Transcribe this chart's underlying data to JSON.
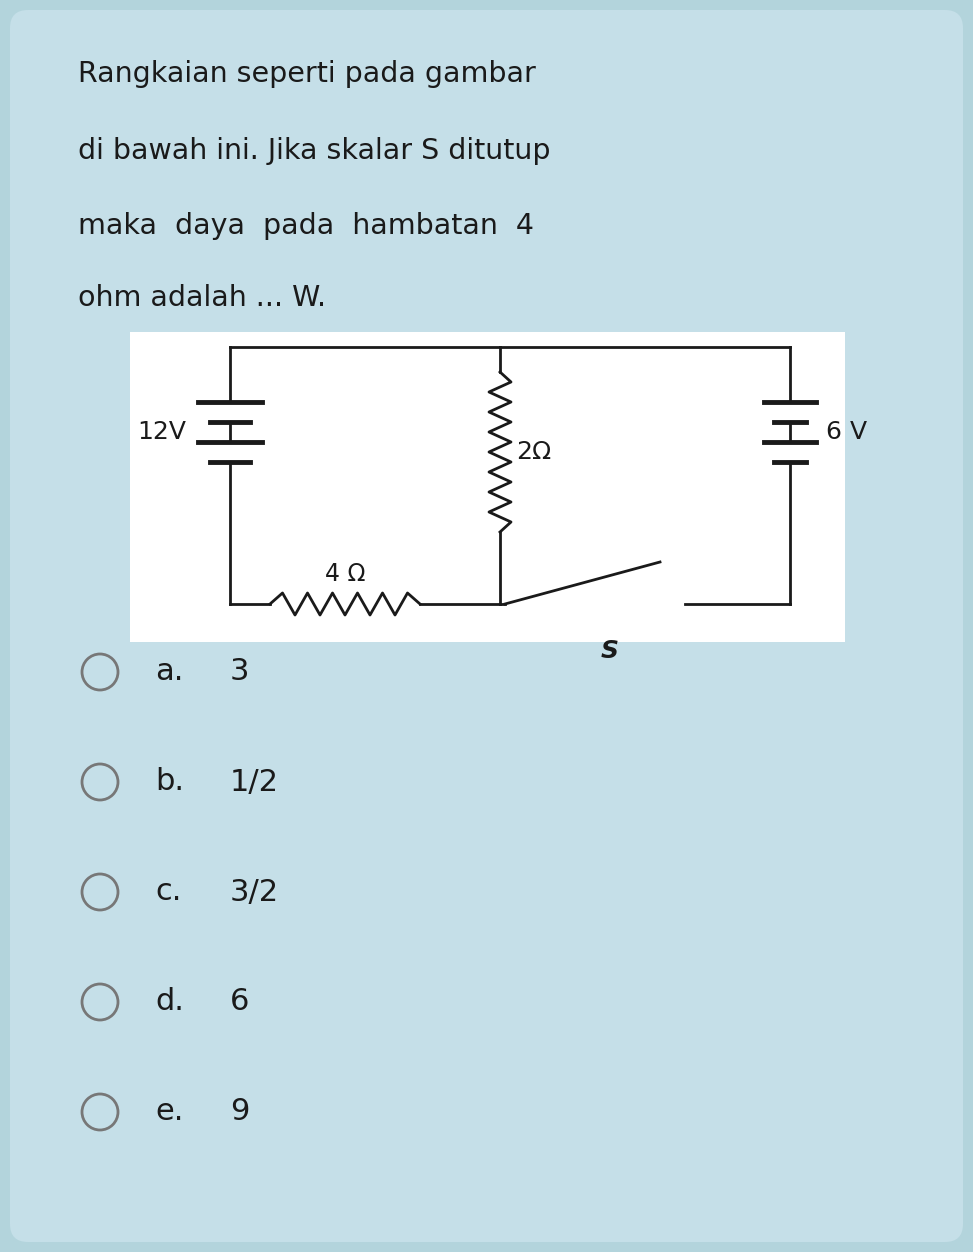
{
  "bg_color": "#b3d4dc",
  "card_bg": "#c5dfe8",
  "circuit_bg": "#ffffff",
  "text_color": "#1a1a1a",
  "line_color": "#1a1a1a",
  "title_lines": [
    "Rangkaian seperti pada gambar",
    "di bawah ini. Jika skalar S ditutup",
    "maka  daya  pada  hambatan  4",
    "ohm adalah ... W."
  ],
  "options": [
    [
      "a.",
      "3"
    ],
    [
      "b.",
      "1/2"
    ],
    [
      "c.",
      "3/2"
    ],
    [
      "d.",
      "6"
    ],
    [
      "e.",
      "9"
    ]
  ],
  "title_fontsize": 20.5,
  "option_fontsize": 22,
  "circuit_lw": 2.0,
  "bat_lw": 3.5
}
